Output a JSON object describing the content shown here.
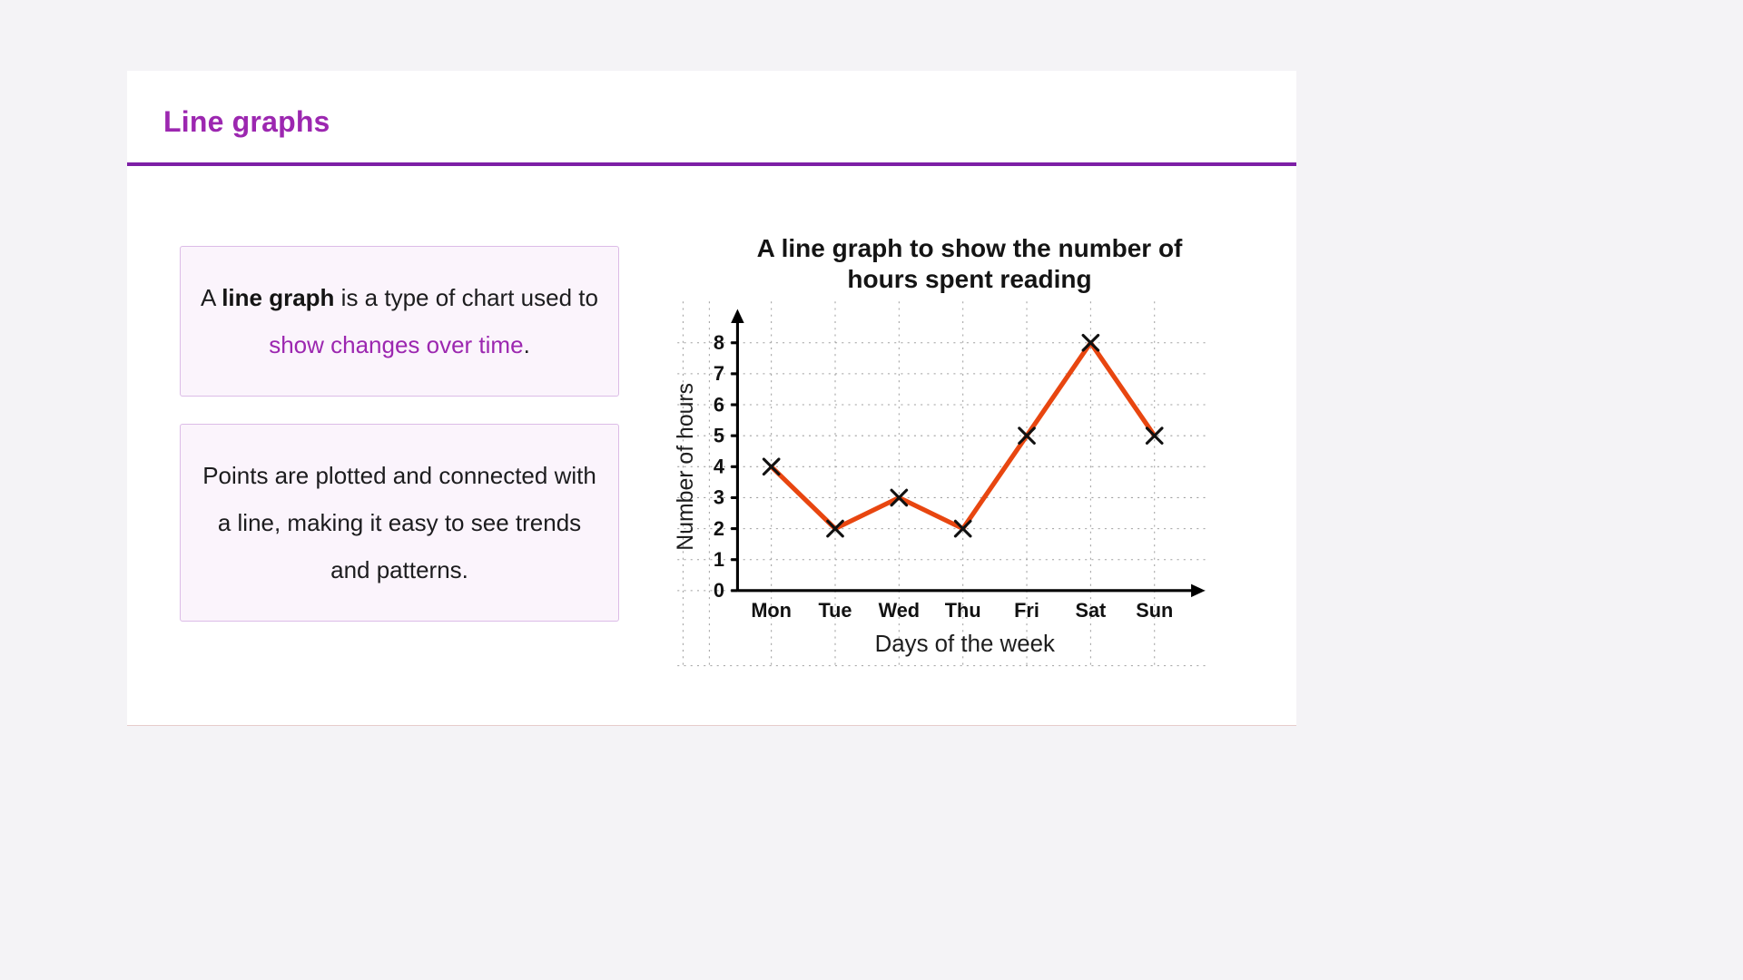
{
  "page": {
    "title": "Line graphs"
  },
  "content": {
    "definition_box": {
      "pre": "A ",
      "bold": "line graph",
      "mid": " is a type of chart used to ",
      "accent": "show changes over time",
      "post": "."
    },
    "points_box": {
      "text": "Points are plotted and connected with a line, making it easy to see trends and patterns."
    }
  },
  "chart_data": {
    "type": "line",
    "title": "A line graph to show the number of hours spent reading",
    "categories": [
      "Mon",
      "Tue",
      "Wed",
      "Thu",
      "Fri",
      "Sat",
      "Sun"
    ],
    "values": [
      4,
      2,
      3,
      2,
      5,
      8,
      5
    ],
    "xlabel": "Days of the week",
    "ylabel": "Number of hours",
    "ylim": [
      0,
      8
    ],
    "y_ticks": [
      0,
      1,
      2,
      3,
      4,
      5,
      6,
      7,
      8
    ],
    "grid": true,
    "grid_style": "dashed",
    "legend": "none",
    "marker": "x",
    "marker_color": "#111111",
    "line_color": "#e84610",
    "axis_color": "#000000"
  },
  "colors": {
    "accent": "#9c27b0",
    "rule": "#7d1fa6",
    "box_bg": "#fbf4fc",
    "box_border": "#dcbce7",
    "chart_line": "#e84610",
    "grid": "#a0a0a0",
    "ink": "#141414"
  }
}
